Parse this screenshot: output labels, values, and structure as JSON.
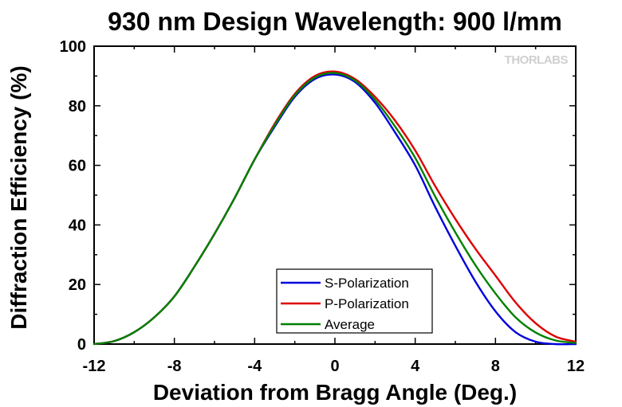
{
  "chart_data": {
    "type": "line",
    "title": "930 nm Design Wavelength: 900 l/mm",
    "xlabel": "Deviation from Bragg Angle (Deg.)",
    "ylabel": "Diffraction Efficiency (%)",
    "xlim": [
      -12,
      12
    ],
    "ylim": [
      0,
      100
    ],
    "xticks": [
      -12,
      -8,
      -4,
      0,
      4,
      8,
      12
    ],
    "yticks": [
      0,
      20,
      40,
      60,
      80,
      100
    ],
    "grid": false,
    "legend_position": "bottom-center",
    "watermark": "THORLABS",
    "x": [
      -12,
      -11,
      -10,
      -9,
      -8,
      -7,
      -6,
      -5,
      -4,
      -3,
      -2,
      -1,
      0,
      1,
      2,
      3,
      4,
      5,
      6,
      7,
      8,
      9,
      10,
      11,
      12
    ],
    "series": [
      {
        "name": "S-Polarization",
        "color": "#0000dd",
        "values": [
          0,
          1,
          4,
          9,
          16,
          26,
          37,
          49,
          62,
          73,
          83,
          89,
          90.5,
          88,
          81,
          71,
          60,
          46,
          33,
          21,
          11,
          4,
          0.8,
          0,
          0
        ]
      },
      {
        "name": "P-Polarization",
        "color": "#dd0000",
        "values": [
          0,
          1,
          4,
          9,
          16,
          26,
          37,
          49,
          62,
          74,
          84,
          90,
          91.5,
          89,
          83,
          75,
          65,
          53,
          42,
          32,
          23,
          14,
          7,
          2.5,
          0.8
        ]
      },
      {
        "name": "Average",
        "color": "#008000",
        "values": [
          0,
          1,
          4,
          9,
          16,
          26,
          37,
          49,
          62,
          73.5,
          83.5,
          89.5,
          91,
          88.5,
          82,
          73,
          62.5,
          49.5,
          37.5,
          26.5,
          17,
          9,
          3.9,
          1.2,
          0.4
        ]
      }
    ]
  }
}
